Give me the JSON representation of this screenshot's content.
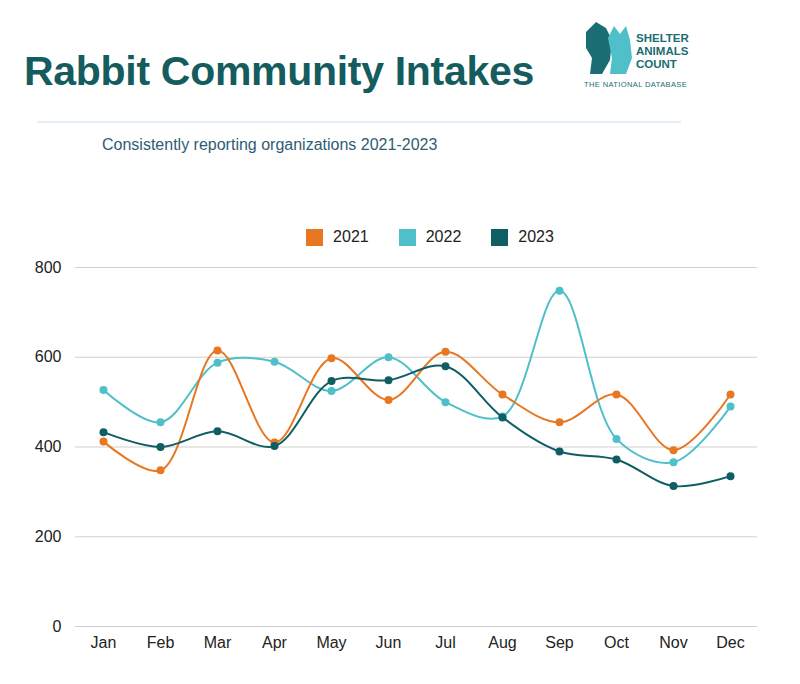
{
  "chart_data": {
    "type": "line",
    "title": "Rabbit Community Intakes",
    "subtitle": "Consistently reporting organizations 2021-2023",
    "categories": [
      "Jan",
      "Feb",
      "Mar",
      "Apr",
      "May",
      "Jun",
      "Jul",
      "Aug",
      "Sep",
      "Oct",
      "Nov",
      "Dec"
    ],
    "series": [
      {
        "name": "2021",
        "color": "#e87722",
        "marker": "circle",
        "values": [
          412,
          348,
          615,
          410,
          598,
          505,
          612,
          517,
          455,
          517,
          393,
          517
        ]
      },
      {
        "name": "2022",
        "color": "#4fbfc9",
        "marker": "circle",
        "values": [
          527,
          455,
          588,
          590,
          525,
          600,
          500,
          468,
          748,
          418,
          366,
          490
        ]
      },
      {
        "name": "2023",
        "color": "#0f5e63",
        "marker": "circle",
        "values": [
          433,
          400,
          435,
          402,
          547,
          549,
          580,
          466,
          390,
          372,
          313,
          335
        ]
      }
    ],
    "ylim": [
      0,
      800
    ],
    "yticks": [
      0,
      200,
      400,
      600,
      800
    ],
    "grid": true,
    "legend": "top"
  },
  "logo": {
    "lines": [
      "SHELTER",
      "ANIMALS",
      "COUNT"
    ],
    "tagline": "THE NATIONAL DATABASE"
  }
}
